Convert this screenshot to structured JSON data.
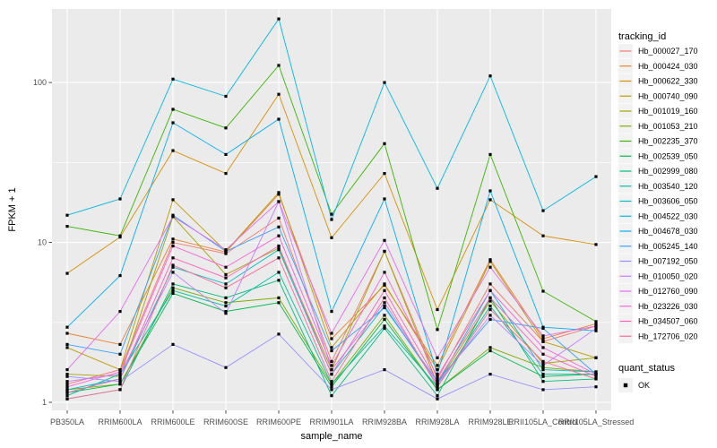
{
  "figure": {
    "background": "#FFFFFF",
    "panel_background": "#EBEBEB",
    "grid_color": "#FFFFFF",
    "tick_color": "#333333",
    "tick_label_color": "#4D4D4D",
    "point_color": "#000000",
    "legend_key_background": "#F2F2F2"
  },
  "chart_data": {
    "type": "line",
    "title": "",
    "xlabel": "sample_name",
    "ylabel": "FPKM + 1",
    "y_scale": "log10",
    "grid": true,
    "legend_position": "right",
    "legend_title": "tracking_id",
    "point_shape": "square",
    "y_ticks": [
      "1",
      "10",
      "100"
    ],
    "y_tick_values": [
      1,
      10,
      100
    ],
    "y_minor_tick_values": [
      3.162,
      31.62
    ],
    "ylim": [
      1,
      288
    ],
    "categories": [
      "PB350LA",
      "RRIM600LA",
      "RRIM600LE",
      "RRIM600SE",
      "RRIM600PE",
      "RRIM901LA",
      "RRIM928BA",
      "RRIM928LA",
      "RRIM928LE",
      "RRII105LA_Control",
      "RRII105LA_Stressed"
    ],
    "series": [
      {
        "name": "Hb_000027_170",
        "color": "#F8766D",
        "values": [
          1.3,
          1.6,
          10.0,
          8.5,
          14.2,
          1.8,
          8.8,
          1.4,
          5.5,
          2.4,
          3.0
        ]
      },
      {
        "name": "Hb_000424_030",
        "color": "#EA8331",
        "values": [
          2.7,
          2.3,
          10.5,
          8.7,
          20.0,
          2.5,
          5.4,
          1.7,
          7.8,
          2.5,
          3.1
        ]
      },
      {
        "name": "Hb_000622_330",
        "color": "#D89000",
        "values": [
          6.4,
          10.8,
          37.5,
          27.0,
          84.5,
          10.7,
          27.0,
          3.8,
          18.5,
          11.0,
          9.7
        ]
      },
      {
        "name": "Hb_000740_090",
        "color": "#C09B00",
        "values": [
          2.2,
          1.6,
          18.5,
          8.8,
          20.5,
          2.2,
          5.5,
          1.6,
          7.6,
          2.4,
          1.9
        ]
      },
      {
        "name": "Hb_001019_160",
        "color": "#A3A500",
        "values": [
          1.5,
          1.45,
          14.5,
          6.3,
          9.2,
          1.6,
          8.8,
          1.3,
          4.3,
          1.75,
          1.9
        ]
      },
      {
        "name": "Hb_001053_210",
        "color": "#7CAE00",
        "values": [
          1.2,
          1.3,
          5.2,
          4.2,
          4.5,
          1.3,
          3.5,
          1.2,
          2.2,
          1.65,
          1.55
        ]
      },
      {
        "name": "Hb_002235_370",
        "color": "#39B600",
        "values": [
          12.6,
          11.0,
          68.0,
          52.0,
          128.0,
          15.0,
          41.5,
          2.85,
          35.5,
          4.95,
          3.2
        ]
      },
      {
        "name": "Hb_002539_050",
        "color": "#00BB4E",
        "values": [
          1.15,
          1.3,
          4.8,
          3.7,
          4.2,
          1.25,
          3.3,
          1.2,
          2.1,
          1.45,
          1.5
        ]
      },
      {
        "name": "Hb_002999_080",
        "color": "#00BF7D",
        "values": [
          1.05,
          1.2,
          5.5,
          4.5,
          5.8,
          1.1,
          2.9,
          1.1,
          4.5,
          1.35,
          1.4
        ]
      },
      {
        "name": "Hb_003540_120",
        "color": "#00C1A3",
        "values": [
          1.1,
          1.5,
          5.0,
          4.0,
          6.5,
          1.3,
          3.0,
          1.25,
          4.0,
          1.5,
          1.5
        ]
      },
      {
        "name": "Hb_003606_050",
        "color": "#00BFC4",
        "values": [
          1.2,
          1.4,
          7.0,
          5.5,
          9.0,
          1.5,
          4.0,
          1.3,
          5.0,
          1.6,
          1.55
        ]
      },
      {
        "name": "Hb_004522_030",
        "color": "#00BAE0",
        "values": [
          14.8,
          18.7,
          105.0,
          82.0,
          250.0,
          13.9,
          100.0,
          21.8,
          110.0,
          15.8,
          25.8
        ]
      },
      {
        "name": "Hb_004678_030",
        "color": "#00B0F6",
        "values": [
          2.95,
          6.2,
          56.0,
          35.5,
          59.0,
          3.7,
          18.7,
          1.5,
          21.0,
          2.95,
          2.8
        ]
      },
      {
        "name": "Hb_005245_140",
        "color": "#35A2FF",
        "values": [
          2.3,
          2.0,
          14.8,
          8.8,
          12.5,
          2.1,
          3.9,
          1.35,
          3.3,
          2.9,
          1.5
        ]
      },
      {
        "name": "Hb_007192_050",
        "color": "#9590FF",
        "values": [
          1.45,
          1.35,
          2.3,
          1.65,
          2.67,
          1.2,
          1.6,
          1.05,
          1.5,
          1.2,
          1.25
        ]
      },
      {
        "name": "Hb_010050_020",
        "color": "#C77CFF",
        "values": [
          1.35,
          1.5,
          6.5,
          3.6,
          18.0,
          1.6,
          4.2,
          1.3,
          3.5,
          1.7,
          2.9
        ]
      },
      {
        "name": "Hb_012760_090",
        "color": "#E76BF3",
        "values": [
          1.6,
          3.7,
          14.5,
          9.0,
          18.0,
          2.7,
          10.3,
          1.9,
          7.0,
          2.6,
          3.0
        ]
      },
      {
        "name": "Hb_023226_030",
        "color": "#FA62DB",
        "values": [
          1.25,
          1.55,
          9.5,
          7.0,
          11.0,
          1.7,
          6.5,
          1.45,
          5.0,
          2.2,
          1.5
        ]
      },
      {
        "name": "Hb_034507_060",
        "color": "#FF62BC",
        "values": [
          1.15,
          1.4,
          8.0,
          6.0,
          9.5,
          1.5,
          5.0,
          1.35,
          4.5,
          2.0,
          1.45
        ]
      },
      {
        "name": "Hb_172706_020",
        "color": "#FF6A98",
        "values": [
          1.05,
          1.2,
          7.2,
          5.2,
          8.0,
          1.35,
          4.5,
          1.25,
          3.8,
          1.8,
          1.4
        ]
      }
    ],
    "quant_legend": {
      "title": "quant_status",
      "items": [
        "OK"
      ]
    }
  }
}
